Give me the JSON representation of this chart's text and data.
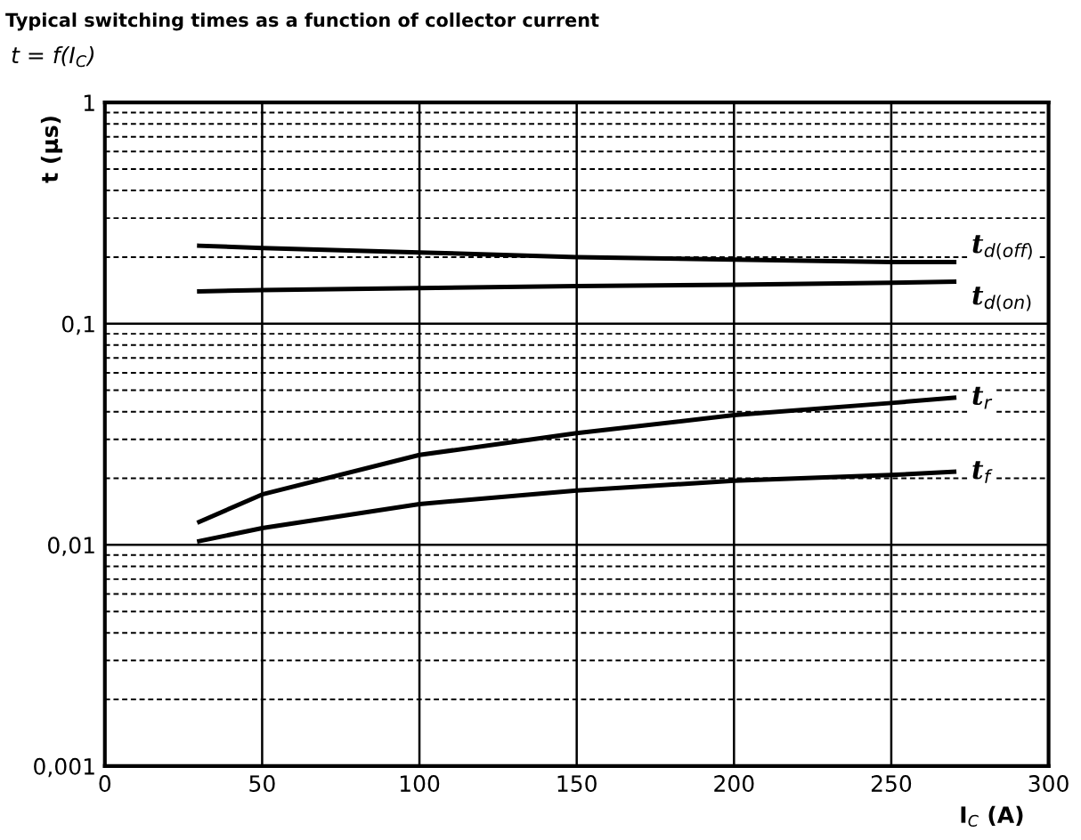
{
  "chart_data": {
    "type": "line",
    "title": "Typical switching times as a function of collector current",
    "subtitle": "t = f(I$_{C}$)",
    "xlabel": "I$_{C}$ (A)",
    "ylabel": "t (µs)",
    "log": "y",
    "grid": true,
    "legend": false,
    "marker": "none",
    "line_style": "solid",
    "xlim": [
      0,
      300
    ],
    "xticks": [
      0,
      50,
      100,
      150,
      200,
      250,
      300
    ],
    "ylim": [
      0.001,
      1
    ],
    "yticks": [
      {
        "value": 0.001,
        "label": "0,001"
      },
      {
        "value": 0.01,
        "label": "0,01"
      },
      {
        "value": 0.1,
        "label": "0,1"
      },
      {
        "value": 1,
        "label": "1"
      }
    ],
    "x": [
      30,
      50,
      100,
      150,
      200,
      250,
      270
    ],
    "series": [
      {
        "name": "t$_{d(off)}$",
        "color": "#000000",
        "values": [
          0.225,
          0.22,
          0.21,
          0.2,
          0.195,
          0.19,
          0.19
        ]
      },
      {
        "name": "t$_{d(on)}$",
        "color": "#000000",
        "values": [
          0.14,
          0.142,
          0.145,
          0.148,
          0.15,
          0.153,
          0.155
        ]
      },
      {
        "name": "t$_{r}$",
        "color": "#000000",
        "values": [
          0.0127,
          0.0169,
          0.0255,
          0.032,
          0.0386,
          0.0438,
          0.0463
        ]
      },
      {
        "name": "t$_{f}$",
        "color": "#000000",
        "values": [
          0.0104,
          0.0119,
          0.0153,
          0.0176,
          0.0195,
          0.0207,
          0.0214
        ]
      }
    ]
  }
}
